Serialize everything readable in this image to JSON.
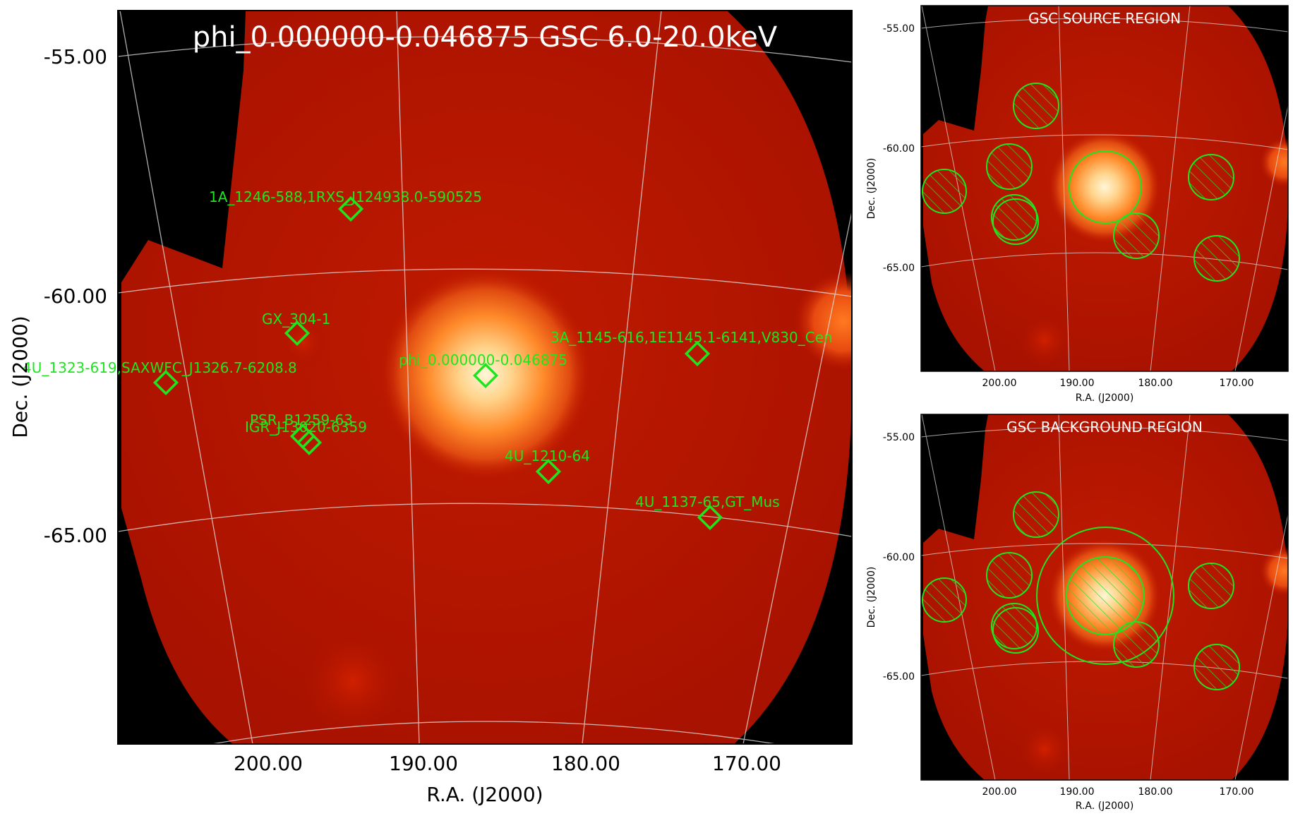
{
  "main_panel": {
    "title": "phi_0.000000-0.046875 GSC 6.0-20.0keV",
    "xlabel": "R.A. (J2000)",
    "ylabel": "Dec. (J2000)",
    "yticks": [
      "-55.00",
      "-60.00",
      "-65.00"
    ],
    "xticks": [
      "200.00",
      "190.00",
      "180.00",
      "170.00"
    ],
    "sources": [
      {
        "label": "1A_1246-588,1RXS_J124938.0-590525"
      },
      {
        "label": "GX_304-1"
      },
      {
        "label": "4U_1323-619,SAXWFC_J1326.7-6208.8"
      },
      {
        "label": "phi_0.000000-0.046875"
      },
      {
        "label": "3A_1145-616,1E1145.1-6141,V830_Cen"
      },
      {
        "label": "PSR_B1259-63"
      },
      {
        "label": "IGR_J13020-6359"
      },
      {
        "label": "4U_1210-64"
      },
      {
        "label": "4U_1137-65,GT_Mus"
      }
    ]
  },
  "source_panel": {
    "title": "GSC SOURCE REGION",
    "xlabel": "R.A. (J2000)",
    "ylabel": "Dec. (J2000)",
    "yticks": [
      "-55.00",
      "-60.00",
      "-65.00"
    ],
    "xticks": [
      "200.00",
      "190.00",
      "180.00",
      "170.00"
    ]
  },
  "background_panel": {
    "title": "GSC BACKGROUND REGION",
    "xlabel": "R.A. (J2000)",
    "ylabel": "Dec. (J2000)",
    "yticks": [
      "-55.00",
      "-60.00",
      "-65.00"
    ],
    "xticks": [
      "200.00",
      "190.00",
      "180.00",
      "170.00"
    ]
  },
  "colors": {
    "region_green": "#1ee61e",
    "map_red": "#b01500",
    "bright_core": "#fff4c8"
  }
}
